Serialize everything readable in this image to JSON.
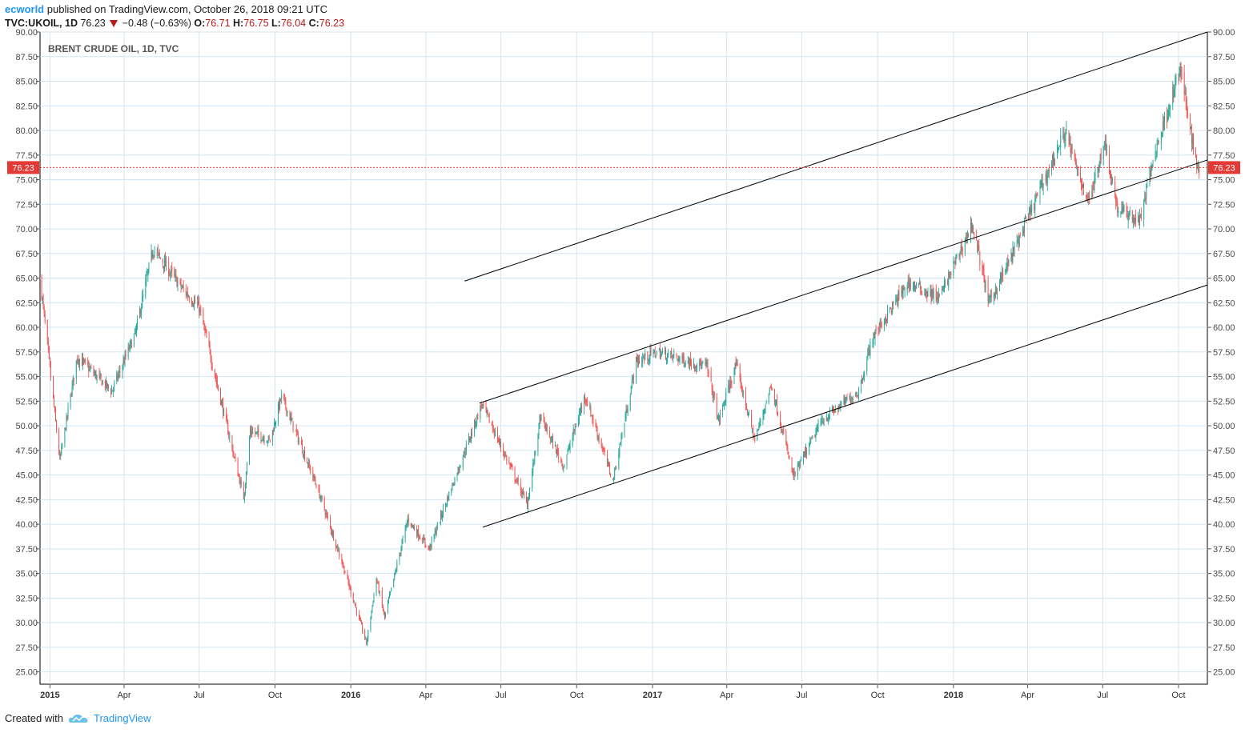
{
  "header": {
    "author": "ecworld",
    "published_text": "published on TradingView.com, October 26, 2018 09:21 UTC",
    "symbol": "TVC:UKOIL, 1D",
    "last": "76.23",
    "change": "−0.48 (−0.63%)",
    "o_label": "O:",
    "o_value": "76.71",
    "h_label": "H:",
    "h_value": "76.75",
    "l_label": "L:",
    "l_value": "76.04",
    "c_label": "C:",
    "c_value": "76.23"
  },
  "footer": {
    "created_with": "Created with",
    "brand": "TradingView"
  },
  "colors": {
    "up": "#26a69a",
    "down": "#ef5350",
    "grid": "#d6e4f0",
    "price_line": "#e53935",
    "axis_text": "#4a4a4a"
  },
  "chart_data": {
    "type": "candlestick",
    "title": "BRENT CRUDE OIL, 1D, TVC",
    "ylim": [
      23.75,
      90.0
    ],
    "y_ticks": [
      "90.00",
      "87.50",
      "85.00",
      "82.50",
      "80.00",
      "77.50",
      "75.00",
      "72.50",
      "70.00",
      "67.50",
      "65.00",
      "62.50",
      "60.00",
      "57.50",
      "55.00",
      "52.50",
      "50.00",
      "47.50",
      "45.00",
      "42.50",
      "40.00",
      "37.50",
      "35.00",
      "32.50",
      "30.00",
      "27.50",
      "25.00"
    ],
    "x_range": [
      "2014-12-20",
      "2018-11-05"
    ],
    "x_ticks": [
      {
        "label": "2015",
        "date": "2015-01-01",
        "bold": true
      },
      {
        "label": "Apr",
        "date": "2015-04-01"
      },
      {
        "label": "Jul",
        "date": "2015-07-01"
      },
      {
        "label": "Oct",
        "date": "2015-10-01"
      },
      {
        "label": "2016",
        "date": "2016-01-01",
        "bold": true
      },
      {
        "label": "Apr",
        "date": "2016-04-01"
      },
      {
        "label": "Jul",
        "date": "2016-07-01"
      },
      {
        "label": "Oct",
        "date": "2016-10-01"
      },
      {
        "label": "2017",
        "date": "2017-01-01",
        "bold": true
      },
      {
        "label": "Apr",
        "date": "2017-04-01"
      },
      {
        "label": "Jul",
        "date": "2017-07-01"
      },
      {
        "label": "Oct",
        "date": "2017-10-01"
      },
      {
        "label": "2018",
        "date": "2018-01-01",
        "bold": true
      },
      {
        "label": "Apr",
        "date": "2018-04-01"
      },
      {
        "label": "Jul",
        "date": "2018-07-01"
      },
      {
        "label": "Oct",
        "date": "2018-10-01"
      }
    ],
    "last_price": 76.23,
    "last_price_label": "76.23",
    "close_path": [
      [
        "2014-12-20",
        65.0
      ],
      [
        "2015-01-13",
        46.5
      ],
      [
        "2015-02-03",
        57.0
      ],
      [
        "2015-03-17",
        53.5
      ],
      [
        "2015-04-15",
        59.5
      ],
      [
        "2015-05-06",
        68.0
      ],
      [
        "2015-06-10",
        64.0
      ],
      [
        "2015-07-01",
        62.0
      ],
      [
        "2015-08-24",
        42.7
      ],
      [
        "2015-09-01",
        49.5
      ],
      [
        "2015-09-25",
        48.5
      ],
      [
        "2015-10-09",
        53.0
      ],
      [
        "2015-11-20",
        44.0
      ],
      [
        "2015-12-20",
        36.5
      ],
      [
        "2016-01-20",
        27.9
      ],
      [
        "2016-02-01",
        34.5
      ],
      [
        "2016-02-11",
        30.5
      ],
      [
        "2016-03-10",
        40.5
      ],
      [
        "2016-04-05",
        37.5
      ],
      [
        "2016-06-08",
        52.2
      ],
      [
        "2016-08-02",
        42.0
      ],
      [
        "2016-08-18",
        50.9
      ],
      [
        "2016-09-15",
        45.9
      ],
      [
        "2016-10-11",
        53.1
      ],
      [
        "2016-11-14",
        44.4
      ],
      [
        "2016-12-12",
        56.5
      ],
      [
        "2017-01-06",
        57.5
      ],
      [
        "2017-03-08",
        56.0
      ],
      [
        "2017-03-22",
        50.5
      ],
      [
        "2017-04-12",
        56.2
      ],
      [
        "2017-05-05",
        48.5
      ],
      [
        "2017-05-25",
        54.2
      ],
      [
        "2017-06-21",
        44.8
      ],
      [
        "2017-07-25",
        50.5
      ],
      [
        "2017-09-08",
        53.5
      ],
      [
        "2017-09-25",
        59.0
      ],
      [
        "2017-11-07",
        64.5
      ],
      [
        "2017-12-15",
        63.0
      ],
      [
        "2018-01-24",
        70.5
      ],
      [
        "2018-02-13",
        62.5
      ],
      [
        "2018-03-06",
        66.0
      ],
      [
        "2018-05-17",
        80.0
      ],
      [
        "2018-06-01",
        75.5
      ],
      [
        "2018-06-15",
        72.8
      ],
      [
        "2018-07-03",
        79.0
      ],
      [
        "2018-07-19",
        72.0
      ],
      [
        "2018-08-15",
        70.8
      ],
      [
        "2018-09-03",
        78.0
      ],
      [
        "2018-10-03",
        86.2
      ],
      [
        "2018-10-24",
        76.0
      ],
      [
        "2018-10-26",
        76.23
      ]
    ],
    "trend_lines": [
      {
        "from": [
          "2016-05-18",
          64.7
        ],
        "to": [
          "2018-11-05",
          90.0
        ]
      },
      {
        "from": [
          "2016-06-05",
          52.3
        ],
        "to": [
          "2018-11-05",
          77.0
        ]
      },
      {
        "from": [
          "2016-06-09",
          39.7
        ],
        "to": [
          "2018-11-05",
          64.3
        ]
      }
    ]
  }
}
